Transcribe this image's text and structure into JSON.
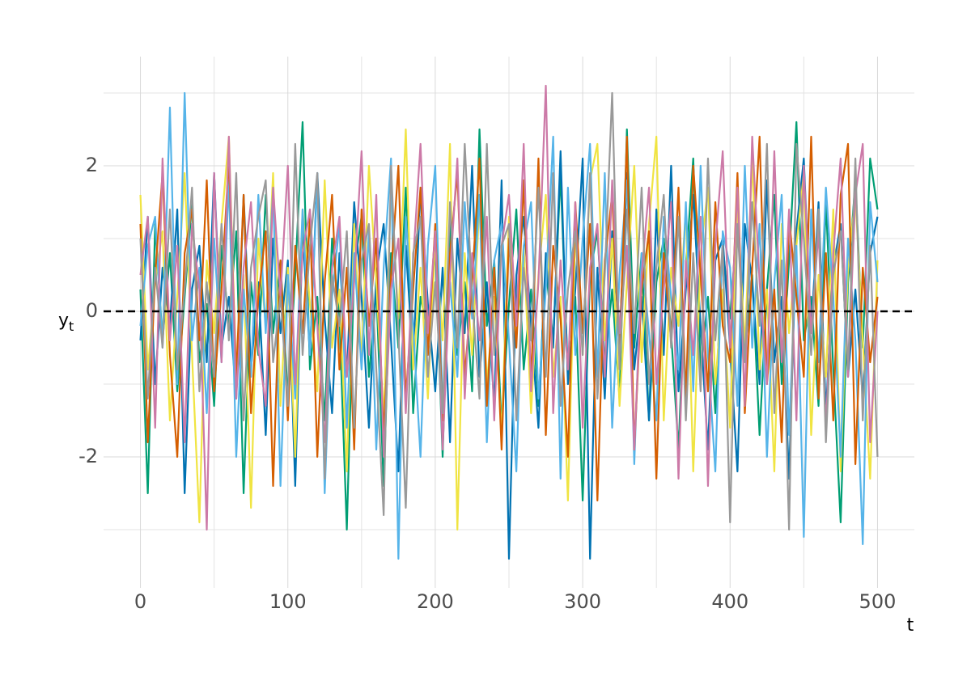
{
  "chart_data": {
    "type": "line",
    "xlabel": "t",
    "ylabel": "y",
    "ylabel_sub": "t",
    "xlim": [
      -25,
      525
    ],
    "ylim": [
      -3.8,
      3.5
    ],
    "xticks": [
      0,
      100,
      200,
      300,
      400,
      500
    ],
    "yticks": [
      -2,
      0,
      2
    ],
    "x_minor_ticks": [
      50,
      150,
      250,
      350,
      450
    ],
    "y_minor_ticks": [
      -3,
      -1,
      1,
      3
    ],
    "grid": true,
    "hline": 0,
    "x": [
      0,
      5,
      10,
      15,
      20,
      25,
      30,
      35,
      40,
      45,
      50,
      55,
      60,
      65,
      70,
      75,
      80,
      85,
      90,
      95,
      100,
      105,
      110,
      115,
      120,
      125,
      130,
      135,
      140,
      145,
      150,
      155,
      160,
      165,
      170,
      175,
      180,
      185,
      190,
      195,
      200,
      205,
      210,
      215,
      220,
      225,
      230,
      235,
      240,
      245,
      250,
      255,
      260,
      265,
      270,
      275,
      280,
      285,
      290,
      295,
      300,
      305,
      310,
      315,
      320,
      325,
      330,
      335,
      340,
      345,
      350,
      355,
      360,
      365,
      370,
      375,
      380,
      385,
      390,
      395,
      400,
      405,
      410,
      415,
      420,
      425,
      430,
      435,
      440,
      445,
      450,
      455,
      460,
      465,
      470,
      475,
      480,
      485,
      490,
      495,
      500
    ],
    "series": [
      {
        "color": "#009E73",
        "values": [
          0.3,
          -2.5,
          1.2,
          -0.4,
          0.8,
          -1.1,
          0.2,
          1.5,
          -0.7,
          0.1,
          -1.3,
          0.9,
          -0.2,
          1.1,
          -2.5,
          0.4,
          -0.6,
          1.6,
          -0.3,
          0.7,
          -1.2,
          0.5,
          2.6,
          -0.8,
          0.2,
          -1.5,
          1.0,
          -0.1,
          -3.0,
          0.6,
          1.3,
          -0.9,
          0.3,
          -2.4,
          0.8,
          -0.5,
          1.7,
          -1.4,
          0.2,
          -0.3,
          0.9,
          -2.0,
          1.2,
          -0.6,
          0.4,
          -1.1,
          2.5,
          -0.2,
          0.7,
          -1.6,
          0.1,
          1.4,
          -0.8,
          0.3,
          -1.3,
          0.6,
          -0.4,
          1.9,
          -0.9,
          0.2,
          -2.6,
          0.5,
          1.1,
          -0.7,
          0.3,
          -1.2,
          2.5,
          -0.5,
          0.8,
          -1.5,
          0.4,
          1.0,
          -0.3,
          -1.9,
          0.6,
          2.1,
          -0.8,
          0.2,
          -1.4,
          0.9,
          -0.1,
          1.3,
          -0.6,
          0.5,
          -1.7,
          0.3,
          1.6,
          -1.0,
          0.7,
          2.6,
          -0.4,
          0.2,
          -1.3,
          1.5,
          -0.8,
          -2.9,
          0.4,
          1.8,
          -0.5,
          2.1,
          1.4
        ]
      },
      {
        "color": "#0072B2",
        "values": [
          -0.4,
          1.3,
          -1.0,
          0.6,
          -0.2,
          1.4,
          -2.5,
          0.3,
          0.9,
          -0.7,
          1.9,
          -0.5,
          0.2,
          -1.2,
          1.6,
          -0.8,
          0.4,
          -1.7,
          1.0,
          -0.3,
          0.7,
          -2.4,
          1.1,
          -0.6,
          1.9,
          -0.1,
          -1.4,
          0.8,
          -0.9,
          1.5,
          0.2,
          -1.6,
          0.5,
          1.2,
          -0.4,
          -2.2,
          0.9,
          -0.7,
          1.7,
          0.1,
          -1.1,
          0.6,
          -1.8,
          1.0,
          -0.3,
          2.0,
          -0.9,
          0.4,
          -1.3,
          1.8,
          -3.4,
          0.5,
          1.3,
          -0.2,
          -1.6,
          0.8,
          -0.5,
          2.2,
          -1.0,
          0.3,
          2.1,
          -3.4,
          0.6,
          -1.2,
          1.1,
          -0.4,
          1.9,
          -0.8,
          0.2,
          -1.5,
          1.4,
          -0.6,
          2.0,
          -1.1,
          0.3,
          1.6,
          -0.2,
          -1.9,
          0.7,
          1.0,
          -0.5,
          -2.2,
          1.2,
          0.4,
          -1.0,
          1.8,
          -0.7,
          0.2,
          -2.3,
          1.1,
          2.1,
          -0.3,
          1.5,
          -1.4,
          0.6,
          1.2,
          -0.9,
          0.3,
          -1.2,
          0.8,
          1.3
        ]
      },
      {
        "color": "#F0E442",
        "values": [
          1.6,
          -0.8,
          0.4,
          1.1,
          -1.5,
          0.2,
          1.9,
          -0.6,
          -2.9,
          0.7,
          -0.3,
          1.2,
          2.4,
          -0.9,
          0.5,
          -2.7,
          1.0,
          -0.2,
          1.9,
          -1.3,
          0.6,
          -2.0,
          1.4,
          0.1,
          -1.1,
          1.8,
          -0.5,
          0.3,
          -2.2,
          1.2,
          -0.7,
          2.0,
          0.4,
          -1.5,
          1.7,
          -0.1,
          2.5,
          -0.8,
          0.6,
          -1.2,
          1.0,
          -0.4,
          2.3,
          -3.0,
          0.8,
          -0.6,
          1.5,
          -1.0,
          0.2,
          -1.7,
          1.3,
          -0.3,
          0.9,
          -1.4,
          0.5,
          1.6,
          -0.9,
          0.2,
          -2.6,
          1.1,
          -0.6,
          1.8,
          2.3,
          -0.4,
          1.0,
          -1.3,
          0.4,
          2.0,
          -0.7,
          1.2,
          2.4,
          -1.5,
          0.6,
          -0.2,
          1.4,
          -2.2,
          0.8,
          1.7,
          -1.0,
          0.3,
          -1.6,
          1.5,
          -0.5,
          2.1,
          -0.8,
          0.3,
          -2.2,
          1.2,
          -0.3,
          0.9,
          1.9,
          -1.7,
          0.5,
          -0.9,
          1.4,
          -2.2,
          0.6,
          1.6,
          -0.4,
          -2.3,
          0.7
        ]
      },
      {
        "color": "#56B4E9",
        "values": [
          -0.2,
          0.9,
          1.3,
          -0.5,
          2.8,
          -1.0,
          3.0,
          -0.4,
          0.6,
          -1.4,
          1.0,
          -0.7,
          1.8,
          -2.0,
          0.3,
          -0.9,
          1.6,
          -0.3,
          1.7,
          -2.4,
          0.5,
          -1.2,
          1.4,
          -0.6,
          1.8,
          -2.5,
          0.2,
          1.2,
          -1.6,
          0.8,
          -0.8,
          1.1,
          -1.9,
          0.6,
          2.1,
          -3.4,
          1.3,
          -0.2,
          -2.0,
          0.9,
          2.0,
          -1.3,
          0.4,
          -0.9,
          1.5,
          -0.1,
          1.6,
          -1.8,
          0.7,
          1.2,
          -0.4,
          -2.2,
          0.9,
          1.5,
          -1.2,
          0.3,
          2.4,
          -2.3,
          1.7,
          -0.6,
          1.0,
          2.3,
          -0.9,
          1.9,
          -1.6,
          0.5,
          1.8,
          -2.1,
          0.8,
          -0.3,
          -1.5,
          1.3,
          0.2,
          -0.8,
          1.5,
          -1.1,
          2.0,
          -0.6,
          -2.2,
          1.1,
          0.6,
          -1.3,
          2.0,
          -0.5,
          1.2,
          -2.0,
          0.4,
          1.6,
          -1.7,
          0.9,
          -3.1,
          1.4,
          -0.7,
          1.7,
          0.2,
          -2.0,
          1.0,
          -0.4,
          -3.2,
          1.5,
          0.4
        ]
      },
      {
        "color": "#D55E00",
        "values": [
          1.2,
          -1.8,
          0.5,
          1.9,
          -0.6,
          -2.0,
          0.8,
          1.4,
          -0.4,
          1.8,
          -1.1,
          0.3,
          2.1,
          -0.9,
          1.6,
          -1.4,
          0.2,
          1.1,
          -2.4,
          0.7,
          -1.5,
          0.9,
          -0.3,
          1.3,
          -2.0,
          0.4,
          1.6,
          -0.8,
          0.6,
          -1.9,
          1.4,
          -0.2,
          1.0,
          -1.7,
          0.5,
          2.0,
          -1.2,
          0.3,
          1.7,
          -0.6,
          1.2,
          -1.5,
          0.8,
          1.9,
          -0.9,
          0.4,
          2.1,
          -1.3,
          0.6,
          -1.9,
          1.0,
          -0.5,
          1.8,
          -1.0,
          2.1,
          -1.7,
          0.9,
          -0.1,
          -2.0,
          1.5,
          -0.3,
          1.2,
          -2.6,
          0.7,
          1.6,
          -0.6,
          2.4,
          -1.9,
          0.3,
          1.1,
          -2.3,
          0.8,
          -0.4,
          1.7,
          -1.2,
          2.0,
          0.5,
          -1.1,
          1.5,
          -0.2,
          -0.7,
          1.9,
          -1.4,
          0.6,
          2.4,
          -1.0,
          0.3,
          -1.8,
          1.3,
          0.2,
          -0.9,
          2.4,
          -1.2,
          0.8,
          -1.5,
          1.6,
          2.3,
          -2.1,
          0.6,
          -0.7,
          0.2
        ]
      },
      {
        "color": "#CC79A7",
        "values": [
          0.5,
          1.3,
          -1.6,
          2.1,
          -0.4,
          0.9,
          -1.8,
          1.2,
          0.3,
          -3.0,
          1.9,
          -0.7,
          2.4,
          -1.2,
          0.6,
          1.5,
          -0.5,
          -1.3,
          1.7,
          0.2,
          2.0,
          -1.0,
          0.8,
          1.4,
          -0.2,
          -1.8,
          0.6,
          1.3,
          -0.9,
          0.4,
          2.2,
          -0.6,
          1.6,
          -2.0,
          0.3,
          1.0,
          -1.4,
          0.7,
          2.3,
          -0.3,
          1.1,
          -1.9,
          0.5,
          2.1,
          -1.2,
          0.8,
          -0.4,
          1.3,
          -1.5,
          0.9,
          1.6,
          -0.2,
          2.3,
          -1.1,
          0.4,
          3.1,
          -1.4,
          0.7,
          -0.8,
          1.5,
          -1.6,
          0.6,
          1.2,
          -0.9,
          1.8,
          -0.3,
          0.9,
          -1.9,
          0.5,
          1.7,
          -1.0,
          0.3,
          1.5,
          -2.3,
          0.7,
          -0.6,
          1.3,
          -2.4,
          0.9,
          2.2,
          -0.5,
          1.7,
          -1.3,
          2.4,
          0.4,
          -1.0,
          2.2,
          -0.7,
          1.4,
          -1.5,
          2.0,
          -0.3,
          1.1,
          -1.6,
          0.8,
          2.1,
          -0.9,
          1.6,
          2.3,
          -1.8,
          0.0
        ]
      },
      {
        "color": "#999999",
        "values": [
          1.0,
          -1.2,
          0.6,
          -0.5,
          1.4,
          -0.8,
          0.3,
          1.7,
          -1.1,
          0.4,
          -0.9,
          1.2,
          -0.4,
          1.9,
          -1.5,
          0.6,
          1.3,
          1.8,
          -0.7,
          0.2,
          -1.3,
          2.3,
          -0.6,
          0.9,
          1.9,
          -2.3,
          0.5,
          -0.2,
          1.1,
          -1.6,
          0.7,
          1.2,
          -0.8,
          -2.8,
          2.0,
          -0.3,
          -2.7,
          0.8,
          1.3,
          -0.9,
          0.4,
          -1.4,
          1.5,
          -0.5,
          2.3,
          0.2,
          -1.2,
          2.3,
          -0.6,
          0.9,
          1.2,
          -1.5,
          0.6,
          -0.4,
          1.7,
          -0.9,
          1.9,
          -1.3,
          0.3,
          1.1,
          -0.6,
          1.9,
          -1.2,
          0.5,
          3.0,
          -0.8,
          1.4,
          -0.3,
          1.7,
          -1.0,
          0.6,
          1.6,
          -0.5,
          1.3,
          -1.5,
          0.8,
          -1.1,
          2.1,
          -0.4,
          0.9,
          -2.9,
          1.2,
          -0.7,
          1.5,
          -0.2,
          2.3,
          -1.4,
          0.7,
          -3.0,
          2.3,
          1.0,
          -0.6,
          1.4,
          -1.8,
          0.5,
          1.1,
          -0.8,
          2.1,
          -1.5,
          0.9,
          -2.0
        ]
      }
    ]
  }
}
